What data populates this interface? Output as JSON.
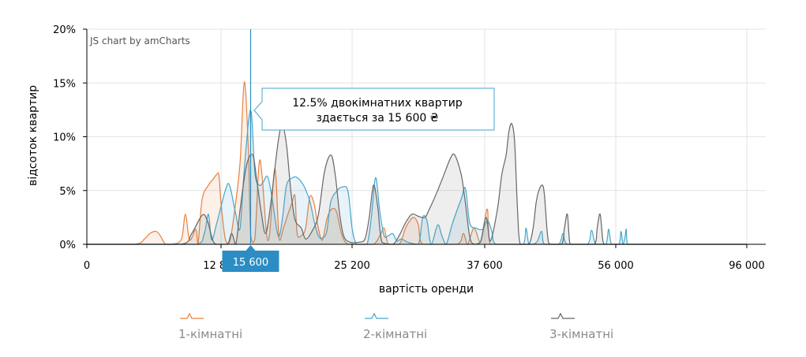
{
  "chart_data": {
    "type": "area",
    "credit": "JS chart by amCharts",
    "xlabel": "вартість оренди",
    "ylabel": "відсоток квартир",
    "x_ticks": [
      "0",
      "12 800",
      "25 200",
      "37 600",
      "56 000",
      "96 000"
    ],
    "y_ticks": [
      "0%",
      "5%",
      "10%",
      "15%",
      "20%"
    ],
    "ylim": [
      0,
      20
    ],
    "grid": true,
    "legend_position": "bottom",
    "cursor": {
      "x": 15600,
      "label": "15 600"
    },
    "tooltip": {
      "line1": "12.5% двокімнатних квартир",
      "line2": "здається за 15 600 ₴"
    },
    "colors": {
      "s1": "#e8813e",
      "s2": "#46a6cc",
      "s3": "#666666",
      "cursor": "#2b8dc4"
    },
    "series": [
      {
        "name": "1-кімнатні",
        "points": [
          [
            0,
            0
          ],
          [
            4500,
            0
          ],
          [
            5500,
            0.5
          ],
          [
            6000,
            1
          ],
          [
            6600,
            1.2
          ],
          [
            7000,
            0.8
          ],
          [
            7500,
            0
          ],
          [
            8000,
            0
          ],
          [
            9000,
            0.4
          ],
          [
            9400,
            2.8
          ],
          [
            9800,
            0.4
          ],
          [
            10400,
            1.4
          ],
          [
            10600,
            0
          ],
          [
            11000,
            4.2
          ],
          [
            11600,
            5.5
          ],
          [
            12000,
            6
          ],
          [
            12400,
            6.5
          ],
          [
            12600,
            6.4
          ],
          [
            12800,
            3.8
          ],
          [
            13200,
            0.5
          ],
          [
            13600,
            0.2
          ],
          [
            14000,
            2.5
          ],
          [
            14600,
            7.6
          ],
          [
            15000,
            15.1
          ],
          [
            15400,
            8.5
          ],
          [
            15600,
            1
          ],
          [
            16000,
            0.5
          ],
          [
            16400,
            7.5
          ],
          [
            16700,
            6.2
          ],
          [
            17100,
            1
          ],
          [
            17400,
            1
          ],
          [
            17800,
            6.5
          ],
          [
            18000,
            6.2
          ],
          [
            18300,
            0.5
          ],
          [
            18700,
            1.5
          ],
          [
            19200,
            3
          ],
          [
            19500,
            3.8
          ],
          [
            19800,
            4.5
          ],
          [
            20000,
            1
          ],
          [
            20400,
            0.8
          ],
          [
            20800,
            1.5
          ],
          [
            21200,
            4.4
          ],
          [
            21600,
            3.8
          ],
          [
            22000,
            1.5
          ],
          [
            22400,
            0.4
          ],
          [
            22800,
            2.3
          ],
          [
            23200,
            3.2
          ],
          [
            23700,
            3.1
          ],
          [
            24200,
            1
          ],
          [
            24800,
            0
          ],
          [
            26000,
            0
          ],
          [
            27200,
            0
          ],
          [
            27800,
            0.8
          ],
          [
            28200,
            1.5
          ],
          [
            28600,
            0
          ],
          [
            29600,
            0
          ],
          [
            30200,
            1.5
          ],
          [
            30600,
            2.2
          ],
          [
            31000,
            2.5
          ],
          [
            31400,
            1.8
          ],
          [
            31800,
            0
          ],
          [
            35000,
            0
          ],
          [
            35600,
            1
          ],
          [
            36000,
            0
          ],
          [
            36600,
            1.5
          ],
          [
            37200,
            0.2
          ],
          [
            37600,
            2.2
          ],
          [
            38000,
            3.2
          ],
          [
            38400,
            0
          ],
          [
            96000,
            0
          ]
        ]
      },
      {
        "name": "2-кімнатні",
        "points": [
          [
            0,
            0
          ],
          [
            10500,
            0
          ],
          [
            11200,
            1
          ],
          [
            11600,
            2.8
          ],
          [
            11900,
            0.4
          ],
          [
            12400,
            2
          ],
          [
            13200,
            5
          ],
          [
            13600,
            5.5
          ],
          [
            14200,
            2.8
          ],
          [
            14600,
            1.5
          ],
          [
            15000,
            7
          ],
          [
            15600,
            12.5
          ],
          [
            16000,
            6.7
          ],
          [
            16400,
            5.5
          ],
          [
            16800,
            5.8
          ],
          [
            17200,
            6.3
          ],
          [
            17600,
            4.5
          ],
          [
            18200,
            0.8
          ],
          [
            18600,
            2.3
          ],
          [
            19000,
            5.5
          ],
          [
            19600,
            6.2
          ],
          [
            20000,
            6.2
          ],
          [
            20600,
            5.5
          ],
          [
            21200,
            4
          ],
          [
            21600,
            2.2
          ],
          [
            22000,
            0.8
          ],
          [
            22400,
            0.6
          ],
          [
            22800,
            1.2
          ],
          [
            23200,
            4
          ],
          [
            23800,
            5
          ],
          [
            24200,
            5.3
          ],
          [
            24800,
            5
          ],
          [
            25200,
            1.5
          ],
          [
            25600,
            0
          ],
          [
            26000,
            0
          ],
          [
            26600,
            0
          ],
          [
            27000,
            2.5
          ],
          [
            27400,
            6.2
          ],
          [
            27800,
            3
          ],
          [
            28200,
            0.8
          ],
          [
            28600,
            0.8
          ],
          [
            29000,
            1
          ],
          [
            29400,
            0.3
          ],
          [
            29800,
            0.5
          ],
          [
            30400,
            0.2
          ],
          [
            31400,
            0
          ],
          [
            31800,
            2.5
          ],
          [
            32200,
            2.2
          ],
          [
            32600,
            0
          ],
          [
            33200,
            1.8
          ],
          [
            33600,
            0.8
          ],
          [
            34000,
            0
          ],
          [
            34600,
            2
          ],
          [
            35400,
            4.2
          ],
          [
            35800,
            5.2
          ],
          [
            36200,
            2
          ],
          [
            36800,
            1.5
          ],
          [
            37400,
            1.4
          ],
          [
            38000,
            2.2
          ],
          [
            38600,
            1.2
          ],
          [
            39200,
            0
          ],
          [
            43000,
            0
          ],
          [
            43400,
            1.5
          ],
          [
            43800,
            0
          ],
          [
            44400,
            0
          ],
          [
            45000,
            0.3
          ],
          [
            45600,
            1.2
          ],
          [
            46000,
            0
          ],
          [
            48000,
            0
          ],
          [
            48600,
            1
          ],
          [
            49200,
            0
          ],
          [
            52000,
            0
          ],
          [
            52600,
            1.3
          ],
          [
            53200,
            0
          ],
          [
            54600,
            0
          ],
          [
            55000,
            1.4
          ],
          [
            55400,
            0
          ],
          [
            57000,
            0
          ],
          [
            57600,
            1.2
          ],
          [
            58200,
            0
          ],
          [
            58800,
            0.6
          ],
          [
            59200,
            1.4
          ],
          [
            59600,
            0
          ],
          [
            96000,
            0
          ]
        ]
      },
      {
        "name": "3-кімнатні",
        "points": [
          [
            0,
            0
          ],
          [
            9000,
            0
          ],
          [
            10000,
            1
          ],
          [
            11000,
            2.7
          ],
          [
            11500,
            2.2
          ],
          [
            12000,
            0.4
          ],
          [
            12400,
            0
          ],
          [
            13400,
            0
          ],
          [
            13800,
            1
          ],
          [
            14200,
            0
          ],
          [
            14600,
            3.2
          ],
          [
            15200,
            7.3
          ],
          [
            15800,
            8.3
          ],
          [
            16200,
            5.8
          ],
          [
            16600,
            3
          ],
          [
            17000,
            1
          ],
          [
            17400,
            3
          ],
          [
            18200,
            9.5
          ],
          [
            18600,
            11.1
          ],
          [
            19000,
            9.2
          ],
          [
            19400,
            5
          ],
          [
            19800,
            2.3
          ],
          [
            20400,
            1.5
          ],
          [
            20800,
            0.5
          ],
          [
            21400,
            1.2
          ],
          [
            22000,
            2.7
          ],
          [
            22600,
            6.8
          ],
          [
            23200,
            8.3
          ],
          [
            23600,
            6.5
          ],
          [
            24000,
            3
          ],
          [
            24400,
            0.8
          ],
          [
            25000,
            0.2
          ],
          [
            25800,
            0.2
          ],
          [
            26400,
            0.5
          ],
          [
            26800,
            2.5
          ],
          [
            27200,
            5.5
          ],
          [
            27600,
            3.5
          ],
          [
            28000,
            0.2
          ],
          [
            29000,
            0
          ],
          [
            29600,
            0.8
          ],
          [
            30200,
            2
          ],
          [
            30800,
            2.8
          ],
          [
            31400,
            2.6
          ],
          [
            32000,
            2.5
          ],
          [
            32400,
            3.2
          ],
          [
            33200,
            5
          ],
          [
            33800,
            6.5
          ],
          [
            34400,
            8
          ],
          [
            34800,
            8.3
          ],
          [
            35400,
            6.5
          ],
          [
            35800,
            3.8
          ],
          [
            36200,
            0.7
          ],
          [
            36600,
            0
          ],
          [
            37200,
            0.2
          ],
          [
            37800,
            2.5
          ],
          [
            38400,
            0.3
          ],
          [
            39400,
            3.3
          ],
          [
            40000,
            6.5
          ],
          [
            40600,
            8.3
          ],
          [
            41000,
            10.5
          ],
          [
            41400,
            11.2
          ],
          [
            41800,
            9.5
          ],
          [
            42200,
            3.3
          ],
          [
            42600,
            0
          ],
          [
            43800,
            0
          ],
          [
            44400,
            1.5
          ],
          [
            44800,
            3.8
          ],
          [
            45200,
            5
          ],
          [
            45700,
            5.5
          ],
          [
            46000,
            4.5
          ],
          [
            46400,
            1
          ],
          [
            46800,
            0
          ],
          [
            48400,
            0
          ],
          [
            48800,
            1.5
          ],
          [
            49200,
            2.8
          ],
          [
            49500,
            0.3
          ],
          [
            49800,
            0
          ],
          [
            53000,
            0
          ],
          [
            53400,
            1.5
          ],
          [
            53800,
            2.8
          ],
          [
            54200,
            0.3
          ],
          [
            54600,
            0
          ],
          [
            96000,
            0
          ]
        ]
      }
    ]
  }
}
